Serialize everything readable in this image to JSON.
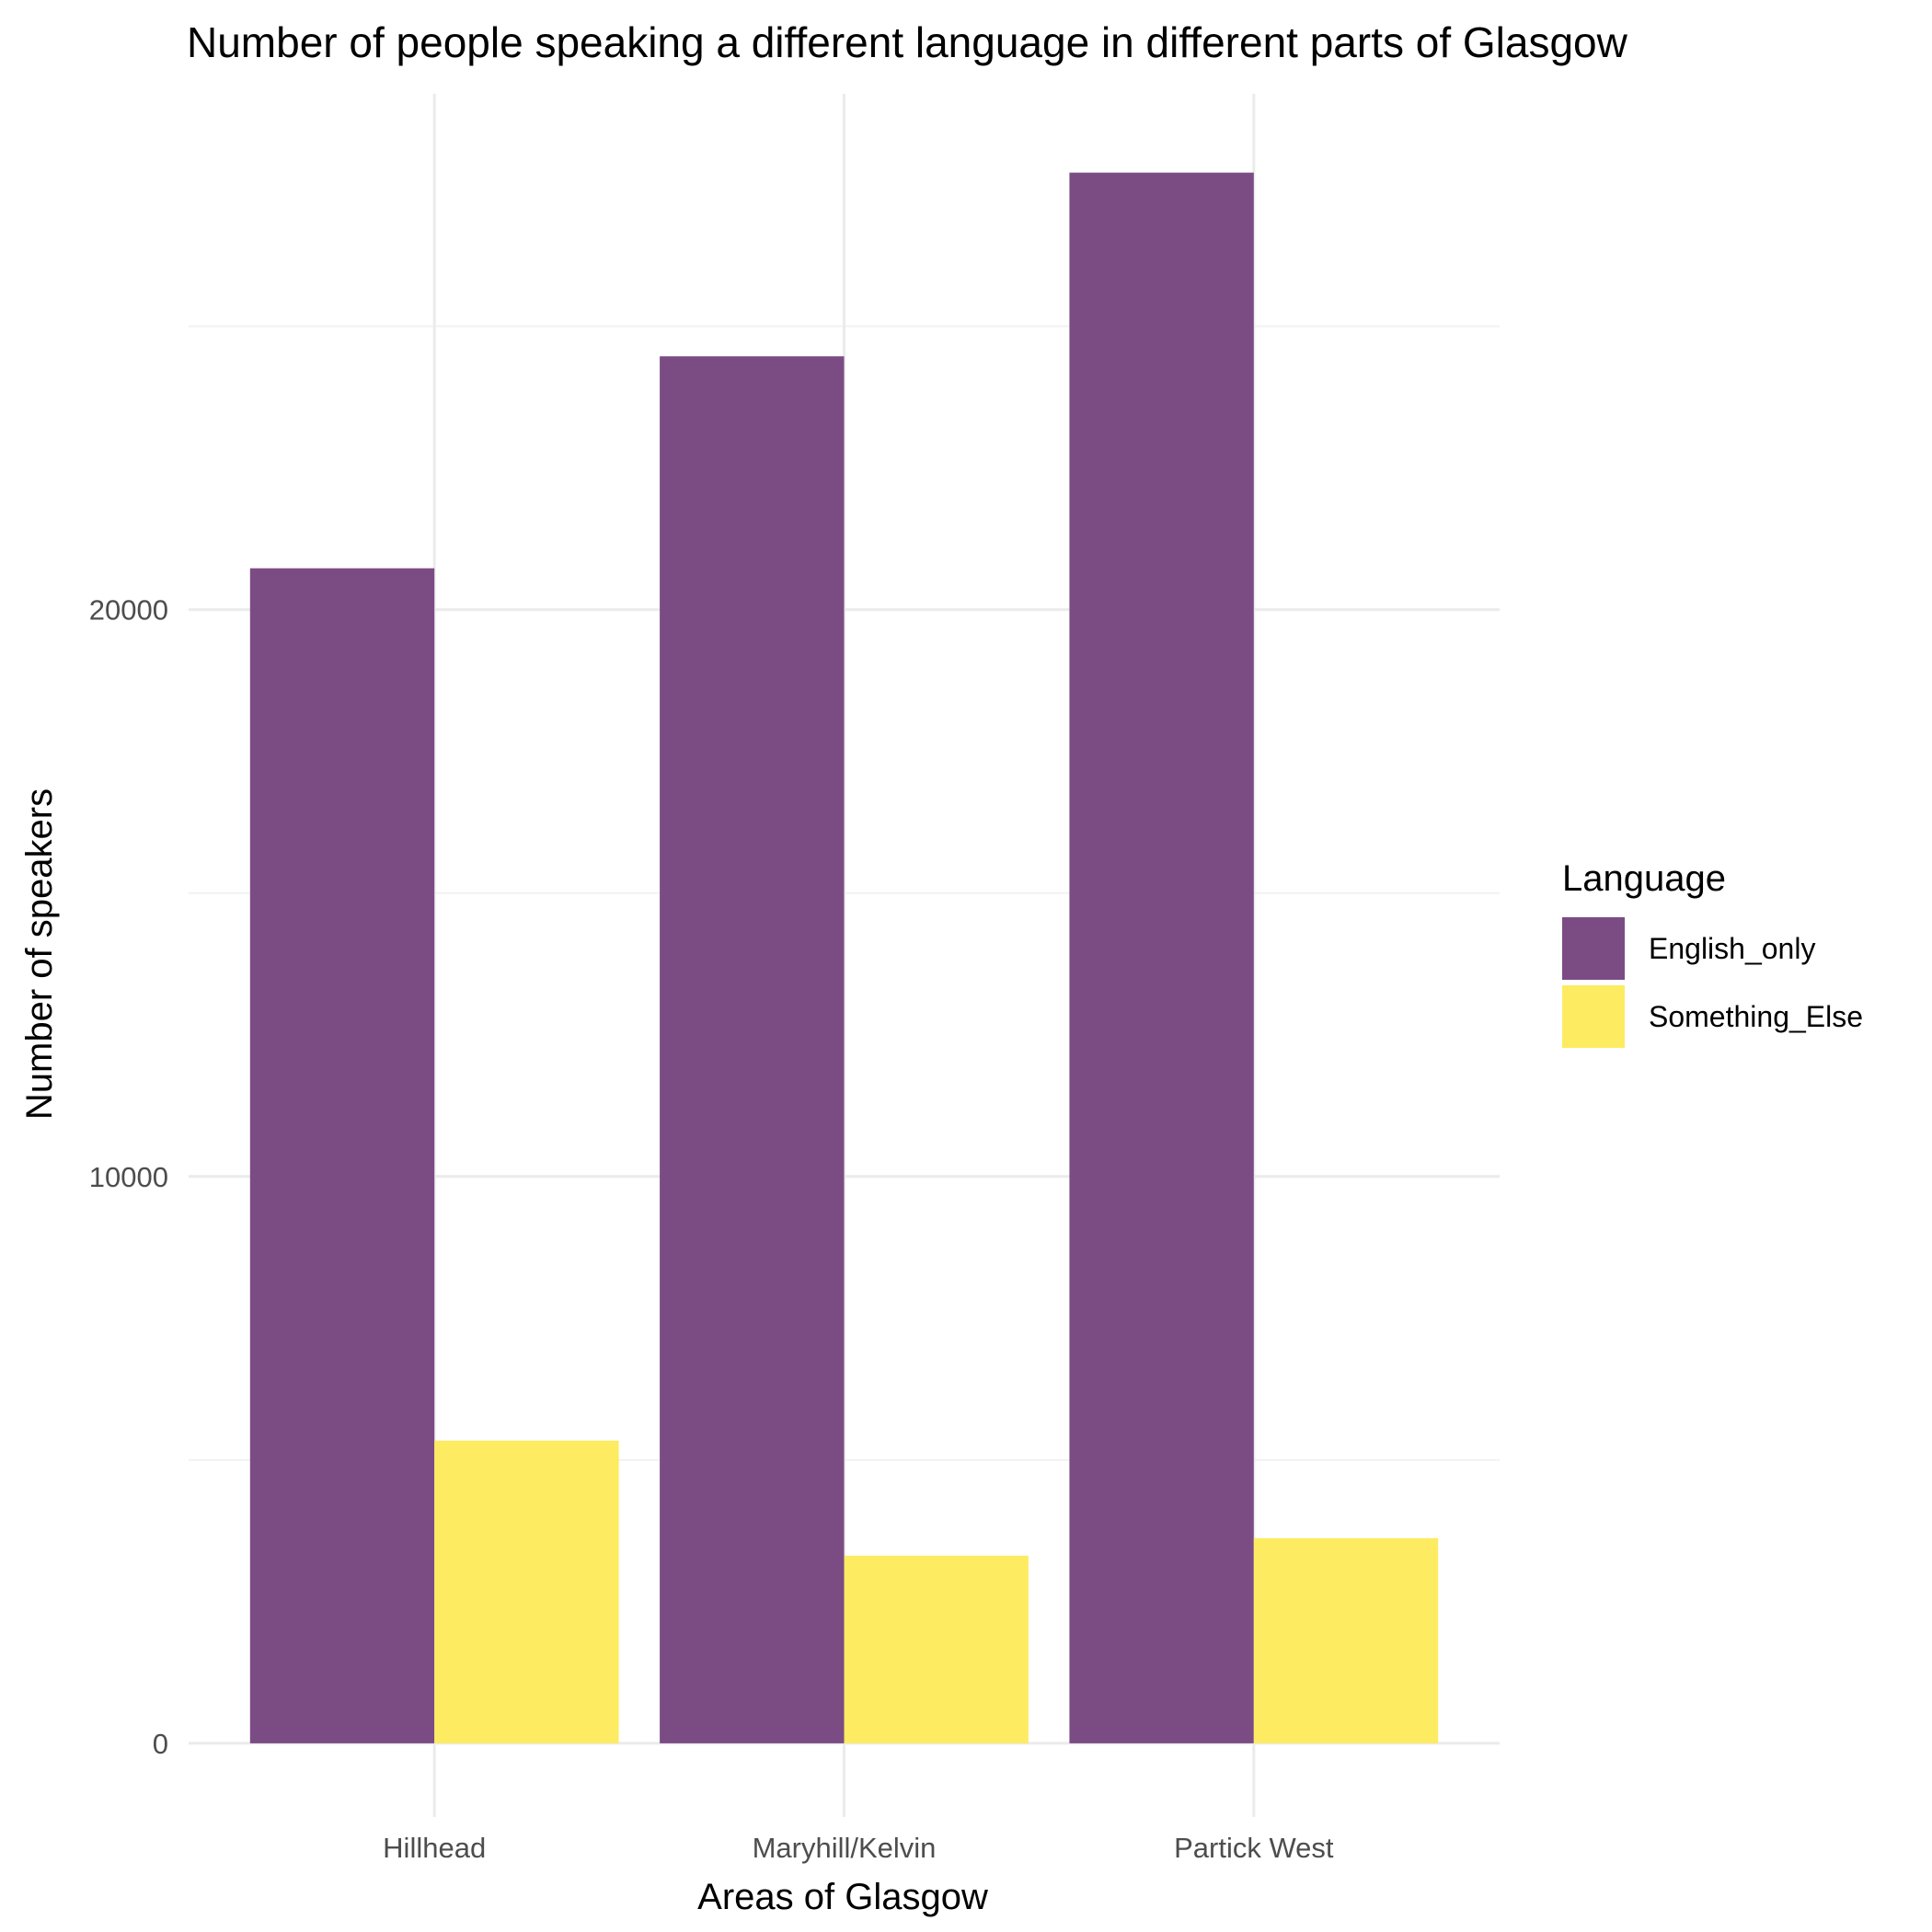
{
  "chart_data": {
    "type": "bar",
    "title": "Number of people speaking a different language in different parts of Glasgow",
    "xlabel": "Areas of Glasgow",
    "ylabel": "Number of speakers",
    "categories": [
      "Hillhead",
      "Maryhill/Kelvin",
      "Partick West"
    ],
    "series": [
      {
        "name": "English_only",
        "color": "#7b4c84",
        "values": [
          20730,
          24470,
          27710
        ]
      },
      {
        "name": "Something_Else",
        "color": "#fdeb62",
        "values": [
          5340,
          3310,
          3620
        ]
      }
    ],
    "ylim": [
      -1300,
      29100
    ],
    "yticks": [
      0,
      10000,
      20000
    ],
    "yticklabels": [
      "0",
      "10000",
      "20000"
    ],
    "grid": true,
    "legend": {
      "title": "Language",
      "position": "right"
    }
  }
}
